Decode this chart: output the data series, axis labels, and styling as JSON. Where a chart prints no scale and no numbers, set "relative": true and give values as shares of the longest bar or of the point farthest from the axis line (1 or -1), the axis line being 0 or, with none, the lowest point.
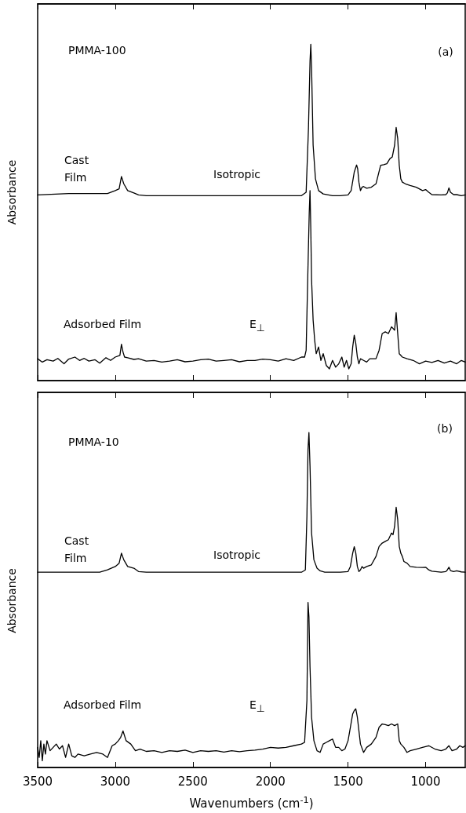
{
  "chart_data": [
    {
      "type": "line",
      "ylabel": "Absorbance",
      "annotations": [
        "PMMA-100",
        "(a)",
        "Isotropic",
        "E$_{⊥}$"
      ],
      "relative": true,
      "xlim": [
        3500,
        745
      ],
      "xticks": [
        3500,
        3000,
        2500,
        2000,
        1500,
        1000
      ],
      "tick_labels": false,
      "grid": false,
      "legend": false,
      "marker": "none",
      "line_style": "solid",
      "series": [
        {
          "name": "Cast Film",
          "color": "#000000",
          "x": [
            3500,
            3300,
            3100,
            3050,
            3000,
            2975,
            2960,
            2945,
            2920,
            2880,
            2850,
            2800,
            2500,
            2000,
            1800,
            1770,
            1755,
            1745,
            1740,
            1735,
            1725,
            1710,
            1690,
            1660,
            1600,
            1550,
            1500,
            1480,
            1460,
            1445,
            1438,
            1430,
            1420,
            1410,
            1400,
            1380,
            1350,
            1320,
            1290,
            1270,
            1250,
            1230,
            1215,
            1200,
            1190,
            1180,
            1170,
            1160,
            1150,
            1130,
            1100,
            1060,
            1020,
            1000,
            980,
            960,
            900,
            870,
            860,
            850,
            840,
            820,
            800,
            770,
            745
          ],
          "values": [
            0.552,
            0.556,
            0.556,
            0.556,
            0.565,
            0.57,
            0.607,
            0.585,
            0.565,
            0.558,
            0.552,
            0.55,
            0.55,
            0.55,
            0.55,
            0.56,
            0.75,
            0.95,
            1.0,
            0.93,
            0.7,
            0.6,
            0.565,
            0.555,
            0.55,
            0.55,
            0.552,
            0.565,
            0.62,
            0.641,
            0.63,
            0.59,
            0.565,
            0.575,
            0.577,
            0.572,
            0.575,
            0.585,
            0.64,
            0.642,
            0.645,
            0.66,
            0.665,
            0.7,
            0.753,
            0.72,
            0.64,
            0.6,
            0.59,
            0.585,
            0.58,
            0.575,
            0.565,
            0.568,
            0.56,
            0.553,
            0.552,
            0.553,
            0.558,
            0.573,
            0.56,
            0.553,
            0.553,
            0.55,
            0.552
          ]
        },
        {
          "name": "Adsorbed Film",
          "color": "#000000",
          "x": [
            3500,
            3470,
            3440,
            3400,
            3370,
            3330,
            3300,
            3260,
            3230,
            3200,
            3170,
            3130,
            3100,
            3060,
            3030,
            3000,
            2970,
            2960,
            2950,
            2940,
            2920,
            2880,
            2850,
            2800,
            2750,
            2700,
            2650,
            2600,
            2550,
            2500,
            2450,
            2400,
            2350,
            2300,
            2250,
            2200,
            2150,
            2100,
            2050,
            2000,
            1950,
            1900,
            1850,
            1800,
            1780,
            1770,
            1760,
            1750,
            1745,
            1740,
            1735,
            1725,
            1715,
            1705,
            1690,
            1675,
            1660,
            1640,
            1620,
            1600,
            1580,
            1560,
            1540,
            1525,
            1510,
            1495,
            1480,
            1470,
            1460,
            1450,
            1440,
            1430,
            1420,
            1400,
            1380,
            1360,
            1340,
            1320,
            1300,
            1280,
            1260,
            1240,
            1220,
            1200,
            1190,
            1180,
            1170,
            1150,
            1120,
            1080,
            1040,
            1000,
            960,
            920,
            880,
            840,
            800,
            770,
            745
          ],
          "values": [
            0.065,
            0.055,
            0.062,
            0.058,
            0.066,
            0.05,
            0.064,
            0.07,
            0.06,
            0.066,
            0.058,
            0.062,
            0.052,
            0.068,
            0.06,
            0.07,
            0.075,
            0.108,
            0.085,
            0.07,
            0.068,
            0.063,
            0.065,
            0.058,
            0.06,
            0.055,
            0.058,
            0.062,
            0.056,
            0.058,
            0.062,
            0.064,
            0.058,
            0.06,
            0.062,
            0.056,
            0.06,
            0.06,
            0.064,
            0.062,
            0.058,
            0.065,
            0.06,
            0.07,
            0.07,
            0.09,
            0.3,
            0.5,
            0.565,
            0.45,
            0.3,
            0.18,
            0.12,
            0.08,
            0.1,
            0.06,
            0.08,
            0.045,
            0.035,
            0.06,
            0.04,
            0.05,
            0.07,
            0.04,
            0.06,
            0.035,
            0.05,
            0.1,
            0.135,
            0.11,
            0.07,
            0.05,
            0.065,
            0.06,
            0.055,
            0.065,
            0.065,
            0.065,
            0.09,
            0.14,
            0.145,
            0.14,
            0.16,
            0.15,
            0.202,
            0.14,
            0.08,
            0.07,
            0.065,
            0.06,
            0.05,
            0.058,
            0.054,
            0.06,
            0.052,
            0.058,
            0.05,
            0.06,
            0.055
          ]
        }
      ]
    },
    {
      "type": "line",
      "ylabel": "Absorbance",
      "xlabel": "Wavenumbers (cm$^{-1}$)",
      "annotations": [
        "PMMA-10",
        "(b)",
        "Isotropic",
        "E$_{⊥}$"
      ],
      "relative": true,
      "xlim": [
        3500,
        745
      ],
      "xticks": [
        3500,
        3000,
        2500,
        2000,
        1500,
        1000
      ],
      "tick_labels": "x",
      "grid": false,
      "legend": false,
      "marker": "none",
      "line_style": "solid",
      "series": [
        {
          "name": "Cast Film",
          "color": "#000000",
          "x": [
            3500,
            3300,
            3100,
            3050,
            3000,
            2975,
            2960,
            2945,
            2920,
            2880,
            2850,
            2800,
            2500,
            2000,
            1800,
            1775,
            1765,
            1758,
            1752,
            1745,
            1735,
            1720,
            1700,
            1680,
            1650,
            1600,
            1550,
            1500,
            1485,
            1470,
            1460,
            1450,
            1440,
            1430,
            1420,
            1410,
            1400,
            1380,
            1350,
            1320,
            1300,
            1280,
            1260,
            1240,
            1220,
            1210,
            1200,
            1190,
            1180,
            1170,
            1160,
            1150,
            1140,
            1120,
            1100,
            1060,
            1020,
            1000,
            980,
            960,
            900,
            870,
            860,
            850,
            840,
            820,
            800,
            770,
            745
          ],
          "values": [
            0.583,
            0.583,
            0.583,
            0.59,
            0.6,
            0.61,
            0.64,
            0.62,
            0.6,
            0.595,
            0.585,
            0.583,
            0.583,
            0.583,
            0.583,
            0.59,
            0.75,
            0.95,
            1.0,
            0.9,
            0.7,
            0.62,
            0.595,
            0.587,
            0.583,
            0.583,
            0.583,
            0.585,
            0.6,
            0.64,
            0.659,
            0.64,
            0.6,
            0.585,
            0.59,
            0.6,
            0.595,
            0.6,
            0.605,
            0.63,
            0.66,
            0.67,
            0.675,
            0.68,
            0.7,
            0.695,
            0.72,
            0.777,
            0.74,
            0.66,
            0.64,
            0.63,
            0.615,
            0.61,
            0.6,
            0.598,
            0.597,
            0.598,
            0.59,
            0.586,
            0.583,
            0.585,
            0.59,
            0.598,
            0.588,
            0.585,
            0.587,
            0.584,
            0.583
          ]
        },
        {
          "name": "Adsorbed Film",
          "color": "#000000",
          "x": [
            3500,
            3490,
            3480,
            3470,
            3460,
            3450,
            3440,
            3420,
            3400,
            3380,
            3360,
            3340,
            3320,
            3300,
            3280,
            3260,
            3240,
            3200,
            3160,
            3120,
            3080,
            3050,
            3020,
            3000,
            2980,
            2965,
            2950,
            2930,
            2900,
            2870,
            2840,
            2800,
            2750,
            2700,
            2650,
            2600,
            2550,
            2500,
            2450,
            2400,
            2350,
            2300,
            2250,
            2200,
            2150,
            2100,
            2050,
            2000,
            1950,
            1900,
            1850,
            1800,
            1780,
            1765,
            1758,
            1752,
            1745,
            1735,
            1720,
            1700,
            1680,
            1660,
            1640,
            1620,
            1600,
            1580,
            1560,
            1540,
            1520,
            1500,
            1485,
            1470,
            1460,
            1450,
            1440,
            1420,
            1400,
            1380,
            1350,
            1320,
            1300,
            1280,
            1260,
            1240,
            1220,
            1200,
            1180,
            1170,
            1160,
            1140,
            1120,
            1100,
            1060,
            1020,
            980,
            940,
            900,
            870,
            850,
            830,
            800,
            780,
            760,
            745
          ],
          "values": [
            0.06,
            0.03,
            0.08,
            0.02,
            0.07,
            0.04,
            0.08,
            0.05,
            0.06,
            0.07,
            0.055,
            0.065,
            0.03,
            0.07,
            0.035,
            0.03,
            0.04,
            0.035,
            0.04,
            0.045,
            0.04,
            0.03,
            0.065,
            0.07,
            0.08,
            0.09,
            0.109,
            0.08,
            0.07,
            0.05,
            0.055,
            0.048,
            0.05,
            0.045,
            0.05,
            0.048,
            0.052,
            0.045,
            0.05,
            0.048,
            0.05,
            0.046,
            0.05,
            0.047,
            0.05,
            0.052,
            0.055,
            0.06,
            0.058,
            0.06,
            0.065,
            0.07,
            0.075,
            0.2,
            0.493,
            0.45,
            0.3,
            0.15,
            0.08,
            0.05,
            0.045,
            0.07,
            0.075,
            0.08,
            0.085,
            0.06,
            0.06,
            0.05,
            0.055,
            0.08,
            0.12,
            0.16,
            0.17,
            0.175,
            0.15,
            0.07,
            0.045,
            0.06,
            0.07,
            0.09,
            0.12,
            0.13,
            0.128,
            0.125,
            0.13,
            0.125,
            0.13,
            0.08,
            0.07,
            0.06,
            0.045,
            0.05,
            0.055,
            0.06,
            0.065,
            0.055,
            0.05,
            0.055,
            0.065,
            0.05,
            0.055,
            0.065,
            0.06,
            0.065
          ]
        }
      ]
    }
  ]
}
